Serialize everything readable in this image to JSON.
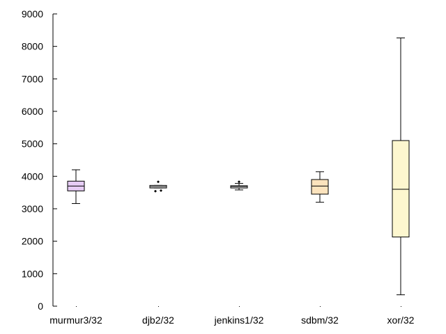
{
  "chart_data": {
    "type": "boxplot",
    "title": "",
    "xlabel": "",
    "ylabel": "",
    "ylim": [
      0,
      9000
    ],
    "yticks": [
      "0",
      "1000",
      "2000",
      "3000",
      "4000",
      "5000",
      "6000",
      "7000",
      "8000",
      "9000"
    ],
    "grid": false,
    "legend": "none",
    "categories": [
      "murmur3/32",
      "djb2/32",
      "jenkins1/32",
      "sdbm/32",
      "xor/32"
    ],
    "boxes": [
      {
        "label": "murmur3/32",
        "whisker_low": 3160,
        "q1": 3550,
        "median": 3700,
        "q3": 3850,
        "whisker_high": 4200,
        "outliers": [],
        "color": "#e6ccf5"
      },
      {
        "label": "djb2/32",
        "whisker_low": 3640,
        "q1": 3640,
        "median": 3680,
        "q3": 3720,
        "whisker_high": 3720,
        "outliers": [
          3540,
          3560,
          3830
        ],
        "color": "#ffffff"
      },
      {
        "label": "jenkins1/32",
        "whisker_low": 3580,
        "q1": 3640,
        "median": 3680,
        "q3": 3710,
        "whisker_high": 3780,
        "outliers": [
          3830
        ],
        "color": "#ffffff"
      },
      {
        "label": "sdbm/32",
        "whisker_low": 3200,
        "q1": 3450,
        "median": 3700,
        "q3": 3900,
        "whisker_high": 4140,
        "outliers": [],
        "color": "#fce3bd"
      },
      {
        "label": "xor/32",
        "whisker_low": 350,
        "q1": 2130,
        "median": 3600,
        "q3": 5100,
        "whisker_high": 8260,
        "outliers": [],
        "color": "#fdf7cf"
      }
    ]
  }
}
